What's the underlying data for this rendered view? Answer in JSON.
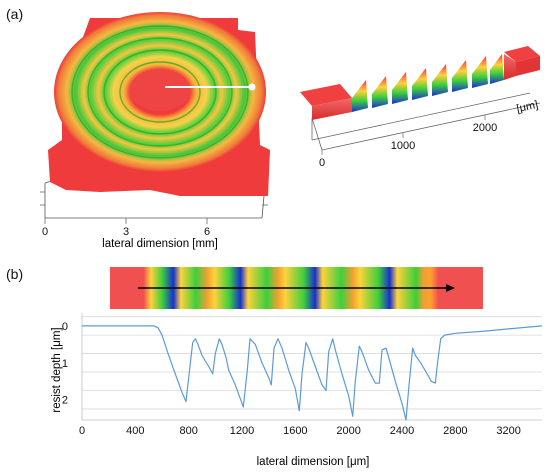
{
  "figure": {
    "panel_a_label": "(a)",
    "panel_b_label": "(b)"
  },
  "panel_a": {
    "left_3d": {
      "x_ticks": [
        "0",
        "3",
        "6"
      ],
      "x_label": "lateral dimension [mm]"
    },
    "right_3d": {
      "x_ticks": [
        "0",
        "1000",
        "2000"
      ],
      "unit_label": "[μm]"
    },
    "colors": {
      "flat_region": "#ef3b3b",
      "ring_yellow": "#f5c542",
      "ring_green": "#32c832",
      "deep_blue": "#1a2fd0"
    }
  },
  "chart_data": {
    "type": "line",
    "xlabel": "lateral dimension [μm]",
    "ylabel": "resist depth [μm]",
    "xlim": [
      0,
      3450
    ],
    "ylim": [
      0,
      2.5
    ],
    "y_inverted": true,
    "x_ticks": [
      0,
      400,
      800,
      1200,
      1600,
      2000,
      2400,
      2800,
      3200
    ],
    "y_ticks": [
      0,
      1,
      2
    ],
    "grid": true,
    "series": [
      {
        "color": "#5b9bd5",
        "x": [
          0,
          150,
          300,
          450,
          540,
          570,
          600,
          650,
          700,
          750,
          780,
          800,
          830,
          850,
          870,
          900,
          950,
          980,
          1000,
          1030,
          1050,
          1080,
          1100,
          1150,
          1190,
          1210,
          1240,
          1260,
          1300,
          1350,
          1400,
          1420,
          1440,
          1470,
          1500,
          1550,
          1600,
          1630,
          1650,
          1680,
          1700,
          1750,
          1800,
          1830,
          1850,
          1880,
          1900,
          1950,
          2000,
          2030,
          2050,
          2080,
          2100,
          2150,
          2200,
          2230,
          2250,
          2280,
          2300,
          2350,
          2400,
          2430,
          2450,
          2480,
          2500,
          2540,
          2580,
          2620,
          2650,
          2670,
          2690,
          2720,
          2800,
          3000,
          3200,
          3450
        ],
        "y": [
          0.0,
          0.0,
          0.0,
          0.0,
          0.0,
          0.05,
          0.25,
          0.8,
          1.3,
          1.8,
          2.05,
          1.4,
          0.45,
          0.35,
          0.5,
          0.8,
          1.1,
          1.3,
          0.75,
          0.35,
          0.5,
          0.85,
          1.2,
          1.6,
          2.0,
          2.2,
          1.2,
          0.35,
          0.5,
          1.0,
          1.4,
          1.6,
          0.6,
          0.35,
          0.6,
          1.2,
          1.7,
          2.3,
          1.3,
          0.45,
          0.6,
          1.1,
          1.6,
          1.75,
          0.7,
          0.35,
          0.65,
          1.3,
          1.9,
          2.45,
          1.5,
          0.55,
          0.7,
          1.2,
          1.55,
          1.55,
          0.65,
          0.6,
          0.85,
          1.5,
          2.1,
          2.55,
          1.7,
          0.6,
          0.8,
          1.0,
          1.25,
          1.5,
          1.55,
          0.9,
          0.35,
          0.25,
          0.2,
          0.15,
          0.08,
          0.0
        ]
      }
    ]
  }
}
